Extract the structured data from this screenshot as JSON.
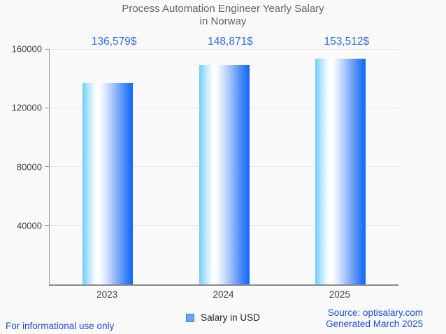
{
  "page": {
    "background": "#fafafa"
  },
  "header": {
    "title_line1": "Process Automation Engineer Yearly Salary",
    "title_line2": "in Norway"
  },
  "chart_data": {
    "type": "bar",
    "title": "Process Automation Engineer Yearly Salary in Norway",
    "categories": [
      "2023",
      "2024",
      "2025"
    ],
    "values": [
      136579,
      148871,
      153512
    ],
    "value_labels": [
      "136,579$",
      "148,871$",
      "153,512$"
    ],
    "series_name": "Salary in USD",
    "xlabel": "",
    "ylabel": "",
    "ylim": [
      0,
      160000
    ],
    "yticks": [
      40000,
      80000,
      120000,
      160000
    ],
    "grid": true,
    "legend_position": "bottom",
    "bar_gradient": [
      "#6fccfa",
      "#ffffff",
      "#0f68fe"
    ]
  },
  "legend": {
    "label": "Salary in USD"
  },
  "footer": {
    "disclaimer": "For informational use only",
    "source": "Source: optisalary.com",
    "generated": "Generated March 2025"
  },
  "colors": {
    "title_text": "#5f6368",
    "value_label_text": "#2c6ce5",
    "axis_label_text": "#3c4043",
    "footer_text": "#1b4ae0",
    "gridline": "#e3e3e3",
    "axis_line": "#8a8a8a",
    "legend_swatch_fill": "#71a3f1",
    "legend_swatch_border": "#3f7de0"
  }
}
